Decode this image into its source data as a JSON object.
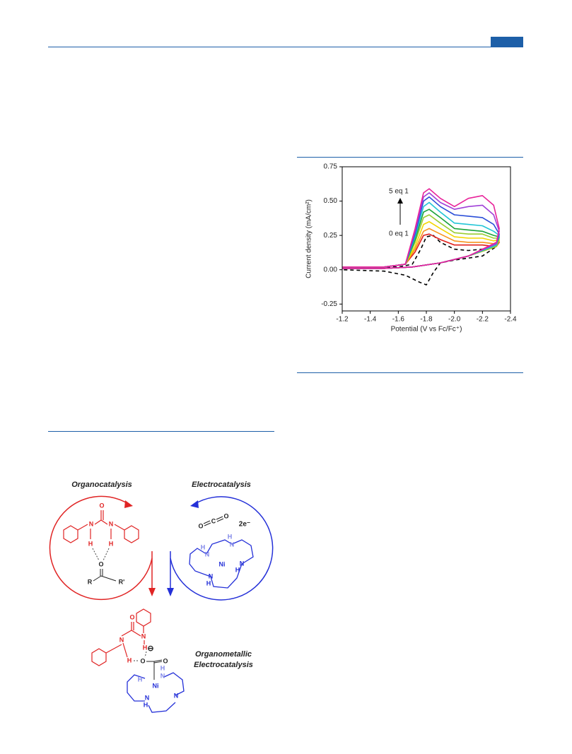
{
  "chart_data": {
    "type": "line",
    "xlabel": "Potential (V vs Fc/Fc⁺)",
    "ylabel": "Current density (mA/cm²)",
    "annotations": [
      "5 eq 1",
      "0 eq 1"
    ],
    "xlim": [
      -1.2,
      -2.4
    ],
    "xticks": [
      -1.2,
      -1.4,
      -1.6,
      -1.8,
      {
        "value": -2,
        "label": "-2.0"
      },
      -2.2,
      -2.4
    ],
    "ylim": [
      -0.3,
      0.75
    ],
    "yticks": [
      -0.25,
      {
        "value": 0,
        "label": "0.00"
      },
      0.25,
      {
        "value": 0.5,
        "label": "0.50"
      },
      0.75
    ],
    "x": [
      -1.2,
      -1.5,
      -1.65,
      -1.72,
      -1.78,
      -1.82,
      -1.9,
      -2.0,
      -2.1,
      -2.2,
      -2.28,
      -2.32,
      -2.3,
      -2.1,
      -1.9,
      -1.7,
      -1.5,
      -1.2
    ],
    "series": [
      {
        "color": "#000000",
        "linestyle": "dashed",
        "x": [
          -1.2,
          -1.6,
          -1.7,
          -1.76,
          -1.8,
          -1.85,
          -1.9,
          -2.0,
          -2.1,
          -2.2,
          -2.3,
          -2.2,
          -2.0,
          -1.9,
          -1.85,
          -1.8,
          -1.75,
          -1.65,
          -1.5,
          -1.2
        ],
        "values": [
          0.02,
          0.02,
          0.04,
          0.15,
          0.24,
          0.25,
          0.2,
          0.15,
          0.14,
          0.15,
          0.17,
          0.1,
          0.07,
          0.05,
          -0.02,
          -0.11,
          -0.09,
          -0.04,
          -0.01,
          0.0
        ]
      },
      {
        "color": "#e0201c",
        "values": [
          0.02,
          0.02,
          0.04,
          0.13,
          0.25,
          0.26,
          0.22,
          0.18,
          0.18,
          0.18,
          0.17,
          0.2,
          0.17,
          0.1,
          0.05,
          0.02,
          0.01,
          0.01
        ]
      },
      {
        "color": "#f7941d",
        "values": [
          0.02,
          0.02,
          0.04,
          0.15,
          0.28,
          0.3,
          0.26,
          0.21,
          0.2,
          0.2,
          0.19,
          0.21,
          0.17,
          0.1,
          0.05,
          0.02,
          0.01,
          0.01
        ]
      },
      {
        "color": "#f2d600",
        "values": [
          0.02,
          0.02,
          0.04,
          0.17,
          0.33,
          0.35,
          0.3,
          0.24,
          0.23,
          0.23,
          0.21,
          0.22,
          0.17,
          0.1,
          0.05,
          0.02,
          0.01,
          0.01
        ]
      },
      {
        "color": "#9acd32",
        "values": [
          0.02,
          0.02,
          0.04,
          0.2,
          0.38,
          0.4,
          0.34,
          0.27,
          0.26,
          0.26,
          0.23,
          0.23,
          0.17,
          0.1,
          0.05,
          0.02,
          0.01,
          0.01
        ]
      },
      {
        "color": "#1ca33a",
        "values": [
          0.02,
          0.02,
          0.04,
          0.22,
          0.42,
          0.44,
          0.38,
          0.3,
          0.29,
          0.28,
          0.25,
          0.24,
          0.18,
          0.1,
          0.05,
          0.02,
          0.01,
          0.01
        ]
      },
      {
        "color": "#22c5d6",
        "values": [
          0.02,
          0.02,
          0.04,
          0.24,
          0.46,
          0.49,
          0.42,
          0.34,
          0.33,
          0.32,
          0.28,
          0.25,
          0.18,
          0.1,
          0.05,
          0.02,
          0.01,
          0.01
        ]
      },
      {
        "color": "#2a4ed8",
        "values": [
          0.02,
          0.02,
          0.04,
          0.26,
          0.5,
          0.53,
          0.46,
          0.4,
          0.39,
          0.38,
          0.33,
          0.26,
          0.19,
          0.1,
          0.05,
          0.02,
          0.01,
          0.01
        ]
      },
      {
        "color": "#a040d8",
        "values": [
          0.02,
          0.02,
          0.04,
          0.28,
          0.53,
          0.56,
          0.49,
          0.44,
          0.46,
          0.47,
          0.4,
          0.28,
          0.19,
          0.1,
          0.05,
          0.02,
          0.01,
          0.01
        ]
      },
      {
        "color": "#e8239a",
        "values": [
          0.02,
          0.02,
          0.04,
          0.3,
          0.56,
          0.59,
          0.52,
          0.46,
          0.52,
          0.54,
          0.47,
          0.3,
          0.2,
          0.1,
          0.05,
          0.02,
          0.01,
          0.01
        ]
      }
    ]
  },
  "scheme": {
    "organo": {
      "title": "Organocatalysis",
      "atoms": [
        "O",
        "N",
        "N",
        "H",
        "H",
        "O",
        "R",
        "R'"
      ]
    },
    "electro": {
      "title": "Electrocatalysis",
      "co2": [
        "O",
        "C",
        "O"
      ],
      "electrons": "2e⁻",
      "atoms": [
        "H",
        "N",
        "N",
        "H",
        "Ni",
        "N",
        "N",
        "H",
        "H"
      ]
    },
    "product": {
      "title": [
        "Organometallic",
        "Electrocatalysis"
      ],
      "urea": [
        "O",
        "N",
        "H",
        "N",
        "H"
      ],
      "carboxylate": [
        "⊖",
        "O",
        "O"
      ],
      "atoms": [
        "H",
        "N",
        "H",
        "Ni",
        "N",
        "N",
        "H"
      ]
    }
  }
}
